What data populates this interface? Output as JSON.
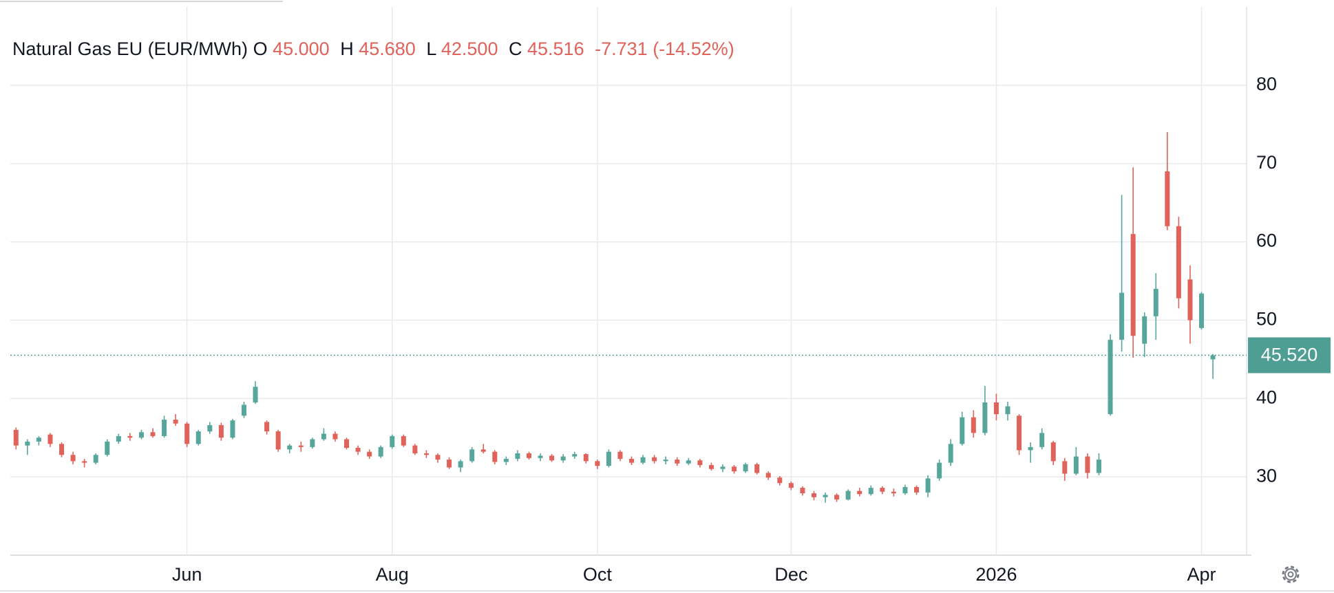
{
  "chart_data": {
    "type": "candlestick",
    "title": "Natural Gas EU (EUR/MWh)",
    "legend": [
      {
        "key": "O",
        "value": "45.000"
      },
      {
        "key": "H",
        "value": "45.680"
      },
      {
        "key": "L",
        "value": "42.500"
      },
      {
        "key": "C",
        "value": "45.516"
      }
    ],
    "change": "-7.731",
    "change_pct": "(-14.52%)",
    "last_price": {
      "value": 45.52,
      "label": "45.520"
    },
    "up_color": "#57a69c",
    "down_color": "#e0625a",
    "legend_color": "#e0625a",
    "price_color": "#4e9e93",
    "ylim": [
      20,
      90
    ],
    "yticks": [
      30,
      40,
      50,
      60,
      70,
      80
    ],
    "grid": true,
    "categories": [
      null,
      null,
      null,
      null,
      null,
      null,
      null,
      null,
      null,
      null,
      null,
      null,
      null,
      null,
      null,
      "Jun",
      null,
      null,
      null,
      null,
      null,
      null,
      null,
      null,
      null,
      null,
      null,
      null,
      null,
      null,
      null,
      null,
      null,
      "Aug",
      null,
      null,
      null,
      null,
      null,
      null,
      null,
      null,
      null,
      null,
      null,
      null,
      null,
      null,
      null,
      null,
      null,
      "Oct",
      null,
      null,
      null,
      null,
      null,
      null,
      null,
      null,
      null,
      null,
      null,
      null,
      null,
      null,
      null,
      null,
      "Dec",
      null,
      null,
      null,
      null,
      null,
      null,
      null,
      null,
      null,
      null,
      null,
      null,
      null,
      null,
      null,
      null,
      null,
      "2026",
      null,
      null,
      null,
      null,
      null,
      null,
      null,
      null,
      null,
      null,
      null,
      null,
      null,
      null,
      null,
      null,
      null,
      "Apr",
      null
    ],
    "ohlc": [
      [
        36,
        36.3,
        33.5,
        34
      ],
      [
        34,
        34.8,
        32.8,
        34.5
      ],
      [
        34.5,
        35.2,
        34,
        35
      ],
      [
        35.4,
        35.6,
        33.8,
        34.2
      ],
      [
        34.2,
        34.4,
        32.5,
        32.8
      ],
      [
        32.8,
        33.2,
        31.6,
        32
      ],
      [
        32,
        32.3,
        31.2,
        31.8
      ],
      [
        31.8,
        33,
        31.6,
        32.8
      ],
      [
        32.8,
        34.8,
        32.6,
        34.5
      ],
      [
        34.5,
        35.5,
        34.2,
        35.2
      ],
      [
        35.2,
        35.6,
        34.6,
        35
      ],
      [
        35,
        36,
        34.8,
        35.7
      ],
      [
        35.7,
        36.2,
        35,
        35.2
      ],
      [
        35.2,
        37.8,
        35,
        37.3
      ],
      [
        37.3,
        38,
        36.5,
        36.8
      ],
      [
        36.8,
        37,
        33.8,
        34.2
      ],
      [
        34.2,
        36,
        34,
        35.8
      ],
      [
        35.8,
        37,
        35.5,
        36.6
      ],
      [
        36.6,
        36.9,
        34.6,
        35
      ],
      [
        35,
        37.4,
        34.8,
        37.2
      ],
      [
        37.8,
        39.6,
        37.5,
        39.2
      ],
      [
        39.5,
        42.2,
        39.3,
        41.5
      ],
      [
        37,
        37.2,
        35.4,
        35.8
      ],
      [
        35.8,
        36,
        33.2,
        33.5
      ],
      [
        33.5,
        34.2,
        33,
        34
      ],
      [
        34,
        34.5,
        33.2,
        33.8
      ],
      [
        33.8,
        35,
        33.6,
        34.8
      ],
      [
        34.8,
        36.2,
        34.6,
        35.5
      ],
      [
        35.5,
        35.8,
        34.5,
        34.8
      ],
      [
        34.8,
        35,
        33.5,
        33.7
      ],
      [
        33.7,
        34,
        32.8,
        33.2
      ],
      [
        33.2,
        33.5,
        32.3,
        32.6
      ],
      [
        32.6,
        34,
        32.4,
        33.8
      ],
      [
        33.8,
        35.4,
        33.6,
        35.2
      ],
      [
        35.2,
        35.4,
        33.8,
        34
      ],
      [
        34,
        34.2,
        32.8,
        33
      ],
      [
        33,
        33.4,
        32.4,
        32.8
      ],
      [
        32.8,
        33,
        31.8,
        32.2
      ],
      [
        32.2,
        32.5,
        31,
        31.2
      ],
      [
        31.2,
        32.2,
        30.6,
        32
      ],
      [
        32,
        33.8,
        31.8,
        33.5
      ],
      [
        33.5,
        34.2,
        33,
        33.2
      ],
      [
        33.2,
        33.4,
        31.6,
        31.9
      ],
      [
        31.9,
        32.6,
        31.5,
        32.3
      ],
      [
        32.3,
        33.4,
        32,
        33
      ],
      [
        33,
        33.2,
        32.2,
        32.4
      ],
      [
        32.4,
        33,
        32,
        32.7
      ],
      [
        32.7,
        32.9,
        31.9,
        32.1
      ],
      [
        32.1,
        32.9,
        31.8,
        32.6
      ],
      [
        32.6,
        33.2,
        32.3,
        32.9
      ],
      [
        32.9,
        33,
        31.7,
        32
      ],
      [
        32,
        32.2,
        31,
        31.4
      ],
      [
        31.4,
        33.5,
        31.2,
        33.2
      ],
      [
        33.2,
        33.4,
        32,
        32.3
      ],
      [
        32.3,
        32.6,
        31.5,
        31.8
      ],
      [
        31.8,
        32.8,
        31.6,
        32.5
      ],
      [
        32.5,
        32.8,
        31.7,
        32
      ],
      [
        32,
        32.6,
        31.6,
        32.2
      ],
      [
        32.2,
        32.5,
        31.4,
        31.7
      ],
      [
        31.7,
        32.4,
        31.5,
        32.1
      ],
      [
        32.1,
        32.3,
        31.2,
        31.5
      ],
      [
        31.5,
        31.8,
        30.8,
        31
      ],
      [
        31,
        31.6,
        30.6,
        31.3
      ],
      [
        31.3,
        31.5,
        30.4,
        30.7
      ],
      [
        30.7,
        31.8,
        30.5,
        31.6
      ],
      [
        31.6,
        31.8,
        30.3,
        30.5
      ],
      [
        30.5,
        30.7,
        29.6,
        29.9
      ],
      [
        29.9,
        30.1,
        28.9,
        29.2
      ],
      [
        29.2,
        29.4,
        28.3,
        28.6
      ],
      [
        28.6,
        28.8,
        27.6,
        27.9
      ],
      [
        27.9,
        28.2,
        27,
        27.4
      ],
      [
        27.4,
        28,
        26.7,
        27.7
      ],
      [
        27.7,
        27.9,
        26.8,
        27.1
      ],
      [
        27.1,
        28.4,
        27,
        28.2
      ],
      [
        28.2,
        28.6,
        27.5,
        27.8
      ],
      [
        27.8,
        28.9,
        27.6,
        28.6
      ],
      [
        28.6,
        28.8,
        27.8,
        28.1
      ],
      [
        28.1,
        28.5,
        27.5,
        27.9
      ],
      [
        27.9,
        29,
        27.7,
        28.7
      ],
      [
        28.7,
        28.9,
        27.7,
        28
      ],
      [
        28,
        30.2,
        27.4,
        29.8
      ],
      [
        29.8,
        32.2,
        29.5,
        31.8
      ],
      [
        31.8,
        34.8,
        31.4,
        34.2
      ],
      [
        34.2,
        38.3,
        34,
        37.6
      ],
      [
        37.6,
        38.5,
        35,
        35.6
      ],
      [
        35.6,
        41.6,
        35.3,
        39.5
      ],
      [
        39.5,
        40.6,
        37.2,
        38
      ],
      [
        38,
        39.6,
        37.2,
        39
      ],
      [
        37.8,
        38,
        32.8,
        33.4
      ],
      [
        33.4,
        34.4,
        31.8,
        33.8
      ],
      [
        33.8,
        36.2,
        33.5,
        35.6
      ],
      [
        34.4,
        34.6,
        31.5,
        32
      ],
      [
        32,
        32.4,
        29.5,
        30.4
      ],
      [
        30.4,
        33.8,
        30.2,
        32.6
      ],
      [
        32.6,
        33,
        29.8,
        30.5
      ],
      [
        30.5,
        33,
        30.2,
        32.2
      ],
      [
        38,
        48.2,
        37.8,
        47.5
      ],
      [
        47.5,
        66,
        46,
        53.5
      ],
      [
        61,
        69.5,
        45.2,
        48
      ],
      [
        47,
        51,
        45.3,
        50.5
      ],
      [
        50.5,
        56,
        47.5,
        54
      ],
      [
        69,
        74,
        61.5,
        62
      ],
      [
        62,
        63.2,
        51.5,
        52.8
      ],
      [
        55.2,
        57,
        47,
        50
      ],
      [
        49,
        53.6,
        48.8,
        53.4
      ],
      [
        45,
        45.68,
        42.5,
        45.516
      ]
    ]
  }
}
